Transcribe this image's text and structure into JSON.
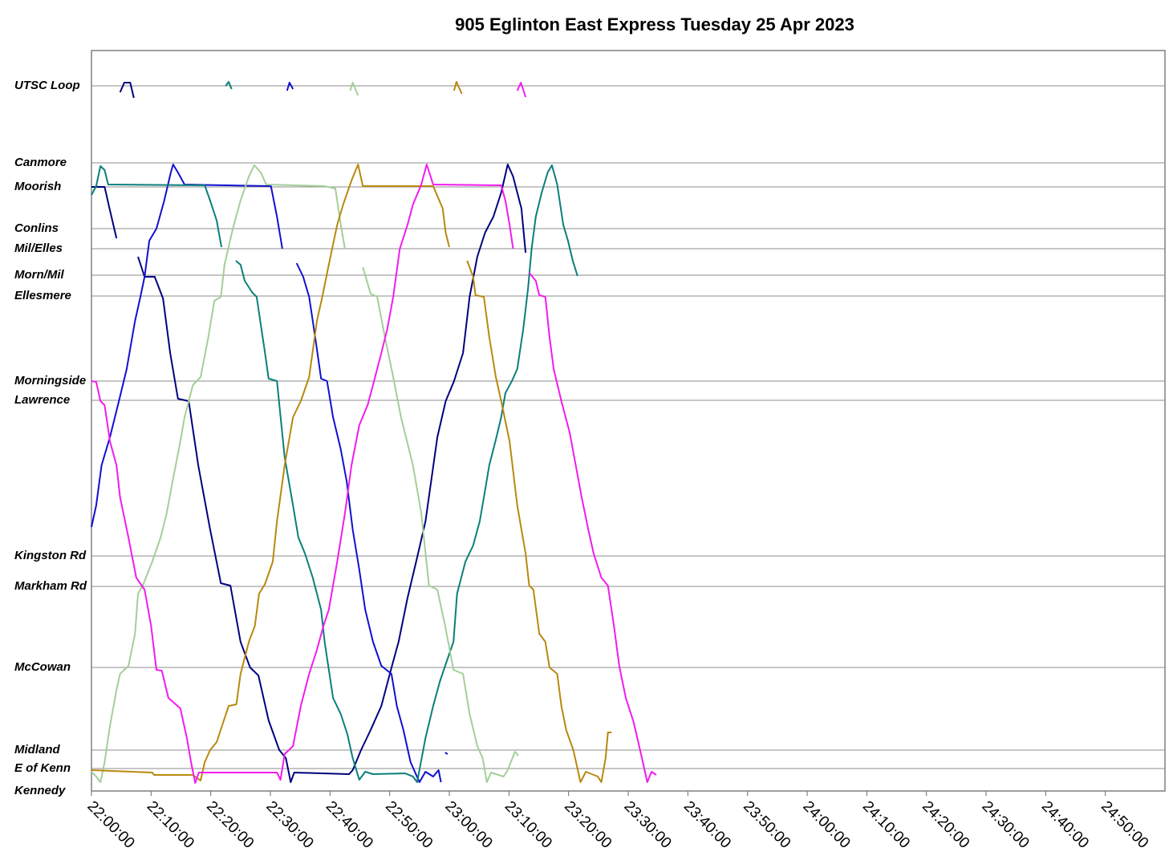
{
  "chart_data": {
    "type": "line",
    "title": "905 Eglinton East Express Tuesday 25 Apr 2023",
    "xlim": [
      1320,
      1500
    ],
    "xticks": [
      {
        "value": 1320,
        "label": "22:00:00"
      },
      {
        "value": 1330,
        "label": "22:10:00"
      },
      {
        "value": 1340,
        "label": "22:20:00"
      },
      {
        "value": 1350,
        "label": "22:30:00"
      },
      {
        "value": 1360,
        "label": "22:40:00"
      },
      {
        "value": 1370,
        "label": "22:50:00"
      },
      {
        "value": 1380,
        "label": "23:00:00"
      },
      {
        "value": 1390,
        "label": "23:10:00"
      },
      {
        "value": 1400,
        "label": "23:20:00"
      },
      {
        "value": 1410,
        "label": "23:30:00"
      },
      {
        "value": 1420,
        "label": "23:40:00"
      },
      {
        "value": 1430,
        "label": "23:50:00"
      },
      {
        "value": 1440,
        "label": "24:00:00"
      },
      {
        "value": 1450,
        "label": "24:10:00"
      },
      {
        "value": 1460,
        "label": "24:20:00"
      },
      {
        "value": 1470,
        "label": "24:30:00"
      },
      {
        "value": 1480,
        "label": "24:40:00"
      },
      {
        "value": 1490,
        "label": "24:50:00"
      }
    ],
    "ylim": [
      0,
      9.23
    ],
    "yticks": [
      {
        "value": 8.79,
        "label": "UTSC Loop"
      },
      {
        "value": 7.83,
        "label": "Canmore"
      },
      {
        "value": 7.53,
        "label": "Moorish"
      },
      {
        "value": 7.01,
        "label": "Conlins"
      },
      {
        "value": 6.76,
        "label": "Mil/Elles"
      },
      {
        "value": 6.43,
        "label": "Morn/Mil"
      },
      {
        "value": 6.17,
        "label": "Ellesmere"
      },
      {
        "value": 5.11,
        "label": "Morningside"
      },
      {
        "value": 4.87,
        "label": "Lawrence"
      },
      {
        "value": 2.93,
        "label": "Kingston Rd"
      },
      {
        "value": 2.55,
        "label": "Markham Rd"
      },
      {
        "value": 1.54,
        "label": "McCowan"
      },
      {
        "value": 0.51,
        "label": "Midland"
      },
      {
        "value": 0.28,
        "label": "E of Kenn"
      },
      {
        "value": 0,
        "label": "Kennedy"
      }
    ],
    "grid": true,
    "series": [
      {
        "color": "#00007f",
        "x": [
          1320.0,
          1322.2,
          1323.1,
          1324.2,
          null,
          1324.8,
          1325.5,
          1326.5,
          1327.1,
          null,
          1327.8,
          1328.9,
          1330.6,
          1332.0,
          1333.2,
          1334.5,
          1336.3,
          1337.9,
          1339.9,
          1341.7,
          1343.3,
          1345.0,
          1346.6,
          1348.0,
          1349.7,
          1351.5,
          1352.6,
          1353.4,
          1354.0,
          1363.2,
          1363.8,
          1365.2,
          1366.8,
          1368.6,
          1370.2,
          1371.5,
          1373.0,
          1374.6,
          1376.0,
          1378.0,
          1379.4,
          1380.8,
          1382.3,
          1383.4,
          1384.7,
          1386.0,
          1387.4,
          1388.7,
          1389.8,
          1390.7,
          1392.1,
          1392.8
        ],
        "values": [
          7.53,
          7.53,
          7.24,
          6.89,
          null,
          8.71,
          8.83,
          8.83,
          8.64,
          null,
          6.66,
          6.41,
          6.41,
          6.14,
          5.46,
          4.89,
          4.86,
          4.06,
          3.26,
          2.59,
          2.56,
          1.86,
          1.54,
          1.44,
          0.88,
          0.51,
          0.41,
          0.11,
          0.23,
          0.21,
          0.26,
          0.51,
          0.76,
          1.06,
          1.51,
          1.86,
          2.41,
          2.91,
          3.36,
          4.41,
          4.86,
          5.11,
          5.46,
          6.16,
          6.66,
          6.96,
          7.16,
          7.46,
          7.81,
          7.66,
          7.26,
          6.71
        ]
      },
      {
        "color": "#1010d0",
        "x": [
          1320.0,
          1320.8,
          1321.7,
          1323.1,
          1324.6,
          1325.9,
          1327.3,
          1328.2,
          1328.9,
          1329.7,
          1330.9,
          1332.2,
          1333.3,
          1333.7,
          1334.5,
          1335.6,
          1350.1,
          1351.1,
          1352.0,
          null,
          1352.8,
          1353.2,
          1353.8,
          null,
          1354.4,
          1355.5,
          1356.5,
          1357.5,
          1358.5,
          1359.5,
          1360.5,
          1361.8,
          1362.8,
          1363.8,
          1364.9,
          1365.9,
          1367.2,
          1368.6,
          1370.3,
          1371.2,
          1372.3,
          1373.5,
          1375.0,
          1376.0,
          1377.3,
          1378.2,
          1378.6,
          null,
          1379.3,
          1379.7
        ],
        "values": [
          3.29,
          3.56,
          4.06,
          4.41,
          4.86,
          5.26,
          5.86,
          6.16,
          6.41,
          6.86,
          7.01,
          7.36,
          7.71,
          7.81,
          7.71,
          7.56,
          7.54,
          7.16,
          6.76,
          null,
          8.73,
          8.83,
          8.75,
          null,
          6.58,
          6.41,
          6.16,
          5.66,
          5.14,
          5.11,
          4.66,
          4.26,
          3.86,
          3.26,
          2.76,
          2.26,
          1.86,
          1.56,
          1.46,
          1.06,
          0.76,
          0.36,
          0.11,
          0.24,
          0.18,
          0.26,
          0.11,
          null,
          0.48,
          0.46
        ]
      },
      {
        "color": "#0a7f7a",
        "x": [
          1320.0,
          1320.8,
          1321.5,
          1322.2,
          1322.8,
          1339.0,
          1339.9,
          1341.0,
          1341.8,
          null,
          1342.5,
          1343.0,
          1343.5,
          null,
          1344.2,
          1345.0,
          1345.7,
          1347.0,
          1347.7,
          1349.1,
          1349.7,
          1351.1,
          1352.4,
          1353.8,
          1354.7,
          1355.8,
          1357.1,
          1358.5,
          1359.1,
          1360.5,
          1361.8,
          1362.9,
          1363.8,
          1364.9,
          1365.9,
          1367.2,
          1372.6,
          1373.9,
          1374.6,
          1376.0,
          1377.3,
          1378.4,
          1379.3,
          1380.7,
          1381.3,
          1382.7,
          1384.0,
          1385.1,
          1385.8,
          1386.7,
          1387.8,
          1388.7,
          1389.4,
          1390.5,
          1391.4,
          1392.4,
          1393.2,
          1393.8,
          1394.5,
          1395.5,
          1396.5,
          1397.2,
          1398.1,
          1399.1,
          1399.9,
          1400.7,
          1401.5
        ],
        "values": [
          7.43,
          7.54,
          7.79,
          7.74,
          7.56,
          7.55,
          7.36,
          7.11,
          6.78,
          null,
          8.79,
          8.84,
          8.75,
          null,
          6.61,
          6.56,
          6.36,
          6.21,
          6.16,
          5.46,
          5.14,
          5.11,
          4.16,
          3.56,
          3.16,
          2.96,
          2.66,
          2.26,
          1.86,
          1.16,
          0.96,
          0.71,
          0.41,
          0.14,
          0.24,
          0.21,
          0.22,
          0.18,
          0.11,
          0.66,
          1.06,
          1.36,
          1.56,
          1.86,
          2.46,
          2.86,
          3.06,
          3.36,
          3.66,
          4.06,
          4.38,
          4.66,
          4.96,
          5.11,
          5.26,
          5.76,
          6.26,
          6.76,
          7.16,
          7.46,
          7.71,
          7.8,
          7.56,
          7.06,
          6.86,
          6.61,
          6.42
        ]
      },
      {
        "color": "#a3cf98",
        "x": [
          1320.0,
          1320.8,
          1321.5,
          1322.2,
          1323.1,
          1324.2,
          1324.8,
          1326.2,
          1327.3,
          1327.8,
          1328.6,
          1330.2,
          1331.6,
          1332.6,
          1333.6,
          1334.9,
          1335.6,
          1337.0,
          1338.3,
          1339.6,
          1340.6,
          1341.7,
          1342.3,
          1343.7,
          1345.0,
          1346.4,
          1347.3,
          1348.4,
          1349.3,
          1359.1,
          1360.9,
          1361.8,
          1362.5,
          null,
          1363.4,
          1363.8,
          1364.7,
          null,
          1365.5,
          1366.8,
          1367.9,
          1369.2,
          1370.6,
          1371.9,
          1373.9,
          1375.3,
          1376.6,
          1378.0,
          1379.3,
          1380.7,
          1382.3,
          1383.4,
          1384.7,
          1385.6,
          1386.3,
          1387.0,
          1389.1,
          1389.8,
          1391.0,
          1391.6
        ],
        "values": [
          0.24,
          0.18,
          0.11,
          0.36,
          0.81,
          1.26,
          1.46,
          1.56,
          1.96,
          2.46,
          2.56,
          2.86,
          3.16,
          3.46,
          3.86,
          4.36,
          4.66,
          5.06,
          5.16,
          5.66,
          6.11,
          6.16,
          6.56,
          7.01,
          7.36,
          7.66,
          7.8,
          7.71,
          7.56,
          7.54,
          7.51,
          7.06,
          6.76,
          null,
          8.73,
          8.83,
          8.67,
          null,
          6.53,
          6.2,
          6.16,
          5.66,
          5.16,
          4.66,
          4.06,
          3.46,
          2.56,
          2.51,
          2.06,
          1.51,
          1.46,
          0.96,
          0.56,
          0.41,
          0.11,
          0.23,
          0.18,
          0.26,
          0.49,
          0.44
        ]
      },
      {
        "color": "#b8890f",
        "x": [
          1320.0,
          1330.2,
          1330.5,
          1337.0,
          1338.3,
          1339.0,
          1339.9,
          1341.0,
          1342.1,
          1343.0,
          1344.3,
          1345.0,
          1346.4,
          1347.4,
          1348.1,
          1349.1,
          1350.4,
          1351.1,
          1352.4,
          1353.8,
          1355.1,
          1356.5,
          1357.8,
          1358.7,
          1359.8,
          1361.2,
          1362.2,
          1363.6,
          1364.7,
          1365.5,
          1377.3,
          1378.9,
          1379.4,
          1380.0,
          null,
          1380.8,
          1381.2,
          1382.1,
          null,
          1383.0,
          1384.0,
          1384.4,
          1385.8,
          1386.7,
          1387.8,
          1388.7,
          1390.1,
          1391.4,
          1392.8,
          1393.4,
          1394.1,
          1395.1,
          1396.1,
          1396.8,
          1398.1,
          1398.8,
          1399.6,
          1400.8,
          1402.0,
          1402.9,
          1404.9,
          1405.5,
          1406.2,
          1406.6,
          1407.2
        ],
        "values": [
          0.26,
          0.23,
          0.2,
          0.2,
          0.13,
          0.36,
          0.51,
          0.61,
          0.86,
          1.06,
          1.08,
          1.46,
          1.86,
          2.06,
          2.46,
          2.58,
          2.86,
          3.36,
          4.06,
          4.66,
          4.86,
          5.16,
          5.86,
          6.16,
          6.56,
          7.06,
          7.31,
          7.61,
          7.81,
          7.54,
          7.54,
          7.26,
          6.96,
          6.78,
          null,
          8.73,
          8.84,
          8.69,
          null,
          6.61,
          6.41,
          6.18,
          6.16,
          5.66,
          5.16,
          4.86,
          4.36,
          3.56,
          2.96,
          2.56,
          2.51,
          1.96,
          1.86,
          1.54,
          1.46,
          1.06,
          0.76,
          0.51,
          0.11,
          0.24,
          0.18,
          0.11,
          0.41,
          0.73,
          0.73
        ]
      },
      {
        "color": "#f21bef",
        "x": [
          1320.0,
          1320.8,
          1321.5,
          1322.2,
          1323.1,
          1324.2,
          1324.8,
          1326.2,
          1327.5,
          1328.9,
          1330.0,
          1330.9,
          1331.8,
          1332.9,
          1334.9,
          1336.0,
          1336.7,
          1337.4,
          1338.0,
          1351.1,
          1351.7,
          1352.4,
          1353.8,
          1355.1,
          1356.5,
          1357.8,
          1358.9,
          1359.8,
          1361.2,
          1362.5,
          1363.6,
          1364.9,
          1366.3,
          1367.2,
          1368.6,
          1369.6,
          1370.6,
          1371.7,
          1373.0,
          1373.9,
          1375.3,
          1376.2,
          1377.3,
          1388.7,
          1389.4,
          1390.1,
          1390.7,
          null,
          1391.4,
          1392.0,
          1392.8,
          null,
          1393.4,
          1394.5,
          1395.1,
          1396.1,
          1396.8,
          1397.5,
          1398.8,
          1400.2,
          1401.2,
          1402.2,
          1403.3,
          1404.2,
          1405.5,
          1406.6,
          1407.6,
          1408.5,
          1409.6,
          1410.9,
          1412.3,
          1413.2,
          1413.9,
          1414.7
        ],
        "values": [
          5.11,
          5.1,
          4.86,
          4.81,
          4.36,
          4.06,
          3.66,
          3.16,
          2.66,
          2.51,
          2.06,
          1.51,
          1.5,
          1.16,
          1.03,
          0.66,
          0.36,
          0.1,
          0.23,
          0.23,
          0.14,
          0.46,
          0.56,
          1.06,
          1.46,
          1.76,
          2.06,
          2.26,
          2.86,
          3.46,
          4.06,
          4.56,
          4.81,
          5.06,
          5.46,
          5.76,
          6.16,
          6.76,
          7.06,
          7.31,
          7.56,
          7.81,
          7.56,
          7.55,
          7.36,
          7.06,
          6.76,
          null,
          8.73,
          8.83,
          8.65,
          null,
          6.46,
          6.36,
          6.18,
          6.16,
          5.66,
          5.26,
          4.86,
          4.46,
          4.06,
          3.66,
          3.26,
          2.96,
          2.66,
          2.56,
          2.06,
          1.56,
          1.16,
          0.86,
          0.41,
          0.11,
          0.24,
          0.2
        ]
      }
    ]
  }
}
